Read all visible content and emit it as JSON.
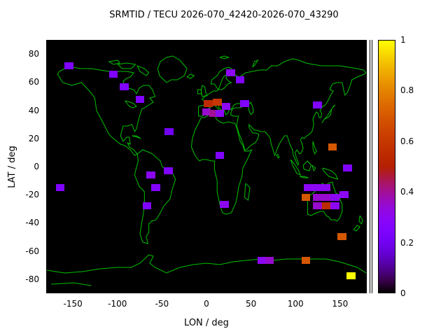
{
  "chart_data": {
    "type": "heatmap",
    "title": "SRMTID / TECU 2026-070_42420-2026-070_43290",
    "xlabel": "LON / deg",
    "ylabel": "LAT / deg",
    "xlim": [
      -180,
      180
    ],
    "ylim": [
      -90,
      90
    ],
    "grid": false,
    "plot_background": "#000000",
    "coastline_color": "#00c000",
    "legend_position": "colorbar-right",
    "xticks": [
      {
        "v": -150,
        "label": "-150"
      },
      {
        "v": -100,
        "label": "-100"
      },
      {
        "v": -50,
        "label": "-50"
      },
      {
        "v": 0,
        "label": "0"
      },
      {
        "v": 50,
        "label": "50"
      },
      {
        "v": 100,
        "label": "100"
      },
      {
        "v": 150,
        "label": "150"
      }
    ],
    "yticks": [
      {
        "v": 80,
        "label": "80"
      },
      {
        "v": 60,
        "label": "60"
      },
      {
        "v": 40,
        "label": "40"
      },
      {
        "v": 20,
        "label": "20"
      },
      {
        "v": 0,
        "label": "0"
      },
      {
        "v": -20,
        "label": "-20"
      },
      {
        "v": -40,
        "label": "-40"
      },
      {
        "v": -60,
        "label": "-60"
      },
      {
        "v": -80,
        "label": "-80"
      }
    ],
    "colorbar": {
      "min": 0,
      "max": 1,
      "palette": "gnuplot-default (black-purple-red-orange-yellow)",
      "ticks": [
        {
          "v": 0,
          "label": "0"
        },
        {
          "v": 0.2,
          "label": "0.2"
        },
        {
          "v": 0.4,
          "label": "0.4"
        },
        {
          "v": 0.6,
          "label": "0.6"
        },
        {
          "v": 0.8,
          "label": "0.8"
        },
        {
          "v": 1,
          "label": "1"
        }
      ]
    },
    "cell_size_deg": {
      "lon": 10,
      "lat": 5
    },
    "cells": [
      {
        "lon": -155,
        "lat": 72,
        "value": 0.25
      },
      {
        "lon": -105,
        "lat": 66,
        "value": 0.25
      },
      {
        "lon": -93,
        "lat": 57,
        "value": 0.25
      },
      {
        "lon": -75,
        "lat": 48,
        "value": 0.25
      },
      {
        "lon": 27,
        "lat": 67,
        "value": 0.3
      },
      {
        "lon": 38,
        "lat": 62,
        "value": 0.25
      },
      {
        "lon": 2,
        "lat": 45,
        "value": 0.55
      },
      {
        "lon": 12,
        "lat": 46,
        "value": 0.6
      },
      {
        "lon": 22,
        "lat": 43,
        "value": 0.3
      },
      {
        "lon": 43,
        "lat": 45,
        "value": 0.25
      },
      {
        "lon": 0,
        "lat": 39,
        "value": 0.35
      },
      {
        "lon": 8,
        "lat": 38,
        "value": 0.4
      },
      {
        "lon": 15,
        "lat": 38,
        "value": 0.3
      },
      {
        "lon": -42,
        "lat": 25,
        "value": 0.2
      },
      {
        "lon": 125,
        "lat": 44,
        "value": 0.25
      },
      {
        "lon": 142,
        "lat": 14,
        "value": 0.7
      },
      {
        "lon": 15,
        "lat": 8,
        "value": 0.25
      },
      {
        "lon": 159,
        "lat": -1,
        "value": 0.25
      },
      {
        "lon": -63,
        "lat": -6,
        "value": 0.3
      },
      {
        "lon": -43,
        "lat": -3,
        "value": 0.25
      },
      {
        "lon": -57,
        "lat": -15,
        "value": 0.25
      },
      {
        "lon": -165,
        "lat": -15,
        "value": 0.25
      },
      {
        "lon": -67,
        "lat": -28,
        "value": 0.25
      },
      {
        "lon": 20,
        "lat": -27,
        "value": 0.3
      },
      {
        "lon": 112,
        "lat": -22,
        "value": 0.7
      },
      {
        "lon": 115,
        "lat": -15,
        "value": 0.3
      },
      {
        "lon": 125,
        "lat": -15,
        "value": 0.3
      },
      {
        "lon": 135,
        "lat": -15,
        "value": 0.3
      },
      {
        "lon": 125,
        "lat": -22,
        "value": 0.35
      },
      {
        "lon": 135,
        "lat": -22,
        "value": 0.35
      },
      {
        "lon": 145,
        "lat": -22,
        "value": 0.3
      },
      {
        "lon": 125,
        "lat": -28,
        "value": 0.35
      },
      {
        "lon": 135,
        "lat": -28,
        "value": 0.55
      },
      {
        "lon": 145,
        "lat": -28,
        "value": 0.3
      },
      {
        "lon": 155,
        "lat": -20,
        "value": 0.3
      },
      {
        "lon": 153,
        "lat": -50,
        "value": 0.7
      },
      {
        "lon": 63,
        "lat": -67,
        "value": 0.3
      },
      {
        "lon": 71,
        "lat": -67,
        "value": 0.35
      },
      {
        "lon": 112,
        "lat": -67,
        "value": 0.7
      },
      {
        "lon": 163,
        "lat": -78,
        "value": 1.0
      }
    ]
  }
}
